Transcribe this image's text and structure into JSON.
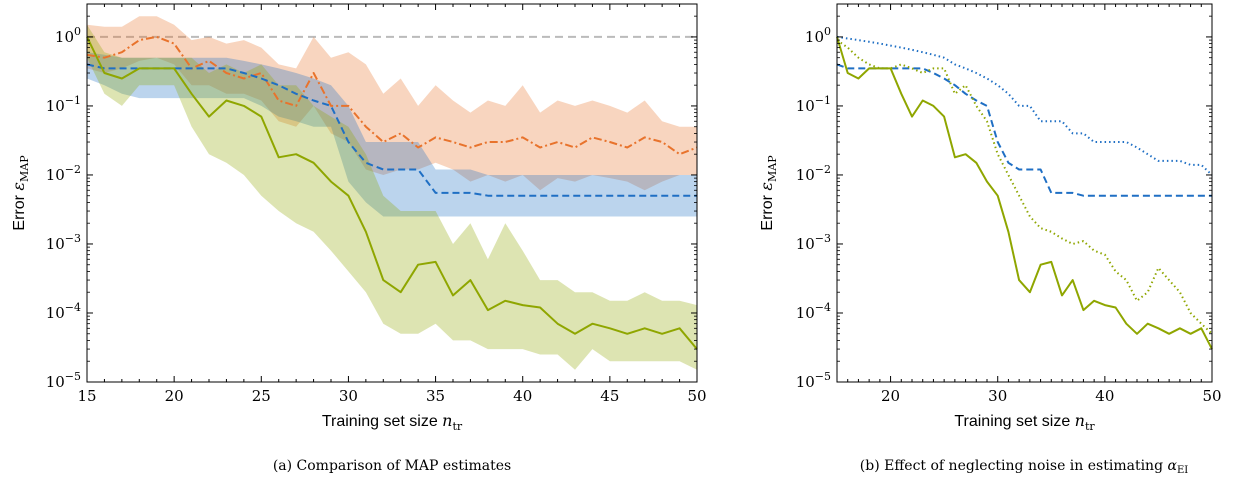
{
  "captions": {
    "a": "(a) Comparison of MAP estimates",
    "b": "(b) Effect of neglecting noise in estimating α_EI"
  },
  "chart_data": [
    {
      "type": "line",
      "xlabel": "Training set size n_tr",
      "ylabel": "Error ε_MAP",
      "yscale": "log",
      "xlim": [
        15,
        50
      ],
      "ylim": [
        1e-05,
        3
      ],
      "xticks": [
        15,
        20,
        25,
        30,
        35,
        40,
        45,
        50
      ],
      "yticks": [
        "10^-5",
        "10^-4",
        "10^-3",
        "10^-2",
        "10^-1",
        "10^0"
      ],
      "grid": false,
      "reference_line": {
        "y": 1,
        "color": "#bbbbbb",
        "style": "dashed"
      },
      "x": [
        15,
        16,
        17,
        18,
        19,
        20,
        21,
        22,
        23,
        24,
        25,
        26,
        27,
        28,
        29,
        30,
        31,
        32,
        33,
        34,
        35,
        36,
        37,
        38,
        39,
        40,
        41,
        42,
        43,
        44,
        45,
        46,
        47,
        48,
        49,
        50
      ],
      "series": [
        {
          "color": "#e8732c",
          "style": "dashdot",
          "values": [
            0.55,
            0.5,
            0.6,
            0.9,
            1.0,
            0.8,
            0.35,
            0.45,
            0.3,
            0.25,
            0.3,
            0.12,
            0.1,
            0.3,
            0.1,
            0.1,
            0.05,
            0.03,
            0.04,
            0.025,
            0.035,
            0.03,
            0.025,
            0.03,
            0.03,
            0.035,
            0.025,
            0.03,
            0.025,
            0.035,
            0.03,
            0.025,
            0.035,
            0.03,
            0.02,
            0.025
          ],
          "band_low": [
            0.35,
            0.3,
            0.35,
            0.45,
            0.5,
            0.4,
            0.2,
            0.2,
            0.15,
            0.15,
            0.12,
            0.06,
            0.05,
            0.1,
            0.04,
            0.03,
            0.012,
            0.01,
            0.012,
            0.012,
            0.015,
            0.012,
            0.008,
            0.01,
            0.008,
            0.01,
            0.006,
            0.009,
            0.008,
            0.01,
            0.009,
            0.008,
            0.006,
            0.008,
            0.01,
            0.01
          ],
          "band_high": [
            1.5,
            1.4,
            1.4,
            2.0,
            2.0,
            1.5,
            0.9,
            1.0,
            0.8,
            0.9,
            0.7,
            0.4,
            0.35,
            1.0,
            0.5,
            0.6,
            0.4,
            0.15,
            0.25,
            0.1,
            0.2,
            0.12,
            0.08,
            0.12,
            0.1,
            0.2,
            0.08,
            0.12,
            0.1,
            0.12,
            0.1,
            0.08,
            0.12,
            0.06,
            0.05,
            0.05
          ]
        },
        {
          "color": "#1f6fc4",
          "style": "dashed",
          "values": [
            0.4,
            0.35,
            0.35,
            0.35,
            0.35,
            0.35,
            0.35,
            0.35,
            0.35,
            0.3,
            0.25,
            0.2,
            0.15,
            0.12,
            0.1,
            0.03,
            0.015,
            0.012,
            0.012,
            0.012,
            0.0055,
            0.0055,
            0.0055,
            0.005,
            0.005,
            0.005,
            0.005,
            0.005,
            0.005,
            0.005,
            0.005,
            0.005,
            0.005,
            0.005,
            0.005,
            0.005
          ],
          "band_low": [
            0.25,
            0.2,
            0.15,
            0.13,
            0.13,
            0.13,
            0.13,
            0.13,
            0.13,
            0.13,
            0.1,
            0.07,
            0.06,
            0.05,
            0.05,
            0.008,
            0.004,
            0.0025,
            0.0025,
            0.0025,
            0.0025,
            0.0025,
            0.0025,
            0.0025,
            0.0025,
            0.0025,
            0.0025,
            0.0025,
            0.0025,
            0.0025,
            0.0025,
            0.0025,
            0.0025,
            0.0025,
            0.0025,
            0.0025
          ],
          "band_high": [
            0.6,
            0.55,
            0.5,
            0.5,
            0.5,
            0.5,
            0.5,
            0.5,
            0.5,
            0.45,
            0.4,
            0.35,
            0.3,
            0.25,
            0.2,
            0.1,
            0.03,
            0.03,
            0.03,
            0.03,
            0.012,
            0.012,
            0.012,
            0.01,
            0.01,
            0.01,
            0.01,
            0.01,
            0.01,
            0.01,
            0.01,
            0.01,
            0.01,
            0.01,
            0.01,
            0.01
          ]
        },
        {
          "color": "#8fa600",
          "style": "solid",
          "values": [
            1.0,
            0.3,
            0.25,
            0.35,
            0.35,
            0.35,
            0.15,
            0.07,
            0.12,
            0.1,
            0.07,
            0.018,
            0.02,
            0.015,
            0.008,
            0.005,
            0.0015,
            0.0003,
            0.0002,
            0.0005,
            0.00055,
            0.00018,
            0.0003,
            0.00011,
            0.00015,
            0.00013,
            0.00012,
            7e-05,
            5e-05,
            7e-05,
            6e-05,
            5e-05,
            6e-05,
            5e-05,
            6e-05,
            3e-05
          ],
          "band_low": [
            0.5,
            0.15,
            0.1,
            0.2,
            0.2,
            0.2,
            0.05,
            0.02,
            0.015,
            0.01,
            0.005,
            0.003,
            0.002,
            0.0015,
            0.0008,
            0.0004,
            0.0002,
            7e-05,
            5e-05,
            5e-05,
            7e-05,
            4e-05,
            4e-05,
            3e-05,
            3e-05,
            3e-05,
            2.5e-05,
            2.5e-05,
            1.5e-05,
            3e-05,
            2e-05,
            2e-05,
            2e-05,
            2e-05,
            2e-05,
            1.5e-05
          ],
          "band_high": [
            1.5,
            0.6,
            0.5,
            0.5,
            0.5,
            0.5,
            0.5,
            0.3,
            0.4,
            0.3,
            0.4,
            0.2,
            0.2,
            0.1,
            0.07,
            0.05,
            0.02,
            0.005,
            0.003,
            0.003,
            0.003,
            0.001,
            0.002,
            0.0006,
            0.002,
            0.0008,
            0.0003,
            0.0003,
            0.0002,
            0.0002,
            0.00015,
            0.00015,
            0.0002,
            0.00015,
            0.00015,
            0.00013
          ]
        }
      ]
    },
    {
      "type": "line",
      "xlabel": "Training set size n_tr",
      "ylabel": "Error ε_MAP",
      "yscale": "log",
      "xlim": [
        15,
        50
      ],
      "ylim": [
        1e-05,
        3
      ],
      "xticks": [
        20,
        30,
        40,
        50
      ],
      "yticks": [
        "10^-5",
        "10^-4",
        "10^-3",
        "10^-2",
        "10^-1",
        "10^0"
      ],
      "grid": false,
      "x": [
        15,
        16,
        17,
        18,
        19,
        20,
        21,
        22,
        23,
        24,
        25,
        26,
        27,
        28,
        29,
        30,
        31,
        32,
        33,
        34,
        35,
        36,
        37,
        38,
        39,
        40,
        41,
        42,
        43,
        44,
        45,
        46,
        47,
        48,
        49,
        50
      ],
      "series": [
        {
          "color": "#1f6fc4",
          "style": "dotted",
          "values": [
            1.0,
            0.95,
            0.9,
            0.85,
            0.8,
            0.75,
            0.7,
            0.65,
            0.6,
            0.55,
            0.5,
            0.4,
            0.35,
            0.3,
            0.25,
            0.2,
            0.15,
            0.1,
            0.1,
            0.06,
            0.06,
            0.06,
            0.04,
            0.04,
            0.03,
            0.03,
            0.03,
            0.03,
            0.025,
            0.02,
            0.016,
            0.016,
            0.016,
            0.014,
            0.014,
            0.01
          ]
        },
        {
          "color": "#1f6fc4",
          "style": "dashed",
          "values": [
            0.4,
            0.35,
            0.35,
            0.35,
            0.35,
            0.35,
            0.35,
            0.35,
            0.35,
            0.3,
            0.25,
            0.2,
            0.15,
            0.12,
            0.1,
            0.03,
            0.015,
            0.012,
            0.012,
            0.012,
            0.0055,
            0.0055,
            0.0055,
            0.005,
            0.005,
            0.005,
            0.005,
            0.005,
            0.005,
            0.005,
            0.005,
            0.005,
            0.005,
            0.005,
            0.005,
            0.005
          ]
        },
        {
          "color": "#8fa600",
          "style": "dotted",
          "values": [
            0.9,
            0.7,
            0.5,
            0.4,
            0.35,
            0.35,
            0.4,
            0.35,
            0.3,
            0.35,
            0.35,
            0.15,
            0.2,
            0.1,
            0.06,
            0.02,
            0.01,
            0.005,
            0.0025,
            0.0017,
            0.0015,
            0.0012,
            0.001,
            0.0011,
            0.0008,
            0.0007,
            0.0004,
            0.0003,
            0.00015,
            0.0002,
            0.00045,
            0.0003,
            0.0002,
            0.0001,
            7e-05,
            5e-05
          ]
        },
        {
          "color": "#8fa600",
          "style": "solid",
          "values": [
            1.0,
            0.3,
            0.25,
            0.35,
            0.35,
            0.35,
            0.15,
            0.07,
            0.12,
            0.1,
            0.07,
            0.018,
            0.02,
            0.015,
            0.008,
            0.005,
            0.0015,
            0.0003,
            0.0002,
            0.0005,
            0.00055,
            0.00018,
            0.0003,
            0.00011,
            0.00015,
            0.00013,
            0.00012,
            7e-05,
            5e-05,
            7e-05,
            6e-05,
            5e-05,
            6e-05,
            5e-05,
            6e-05,
            3e-05
          ]
        }
      ]
    }
  ]
}
